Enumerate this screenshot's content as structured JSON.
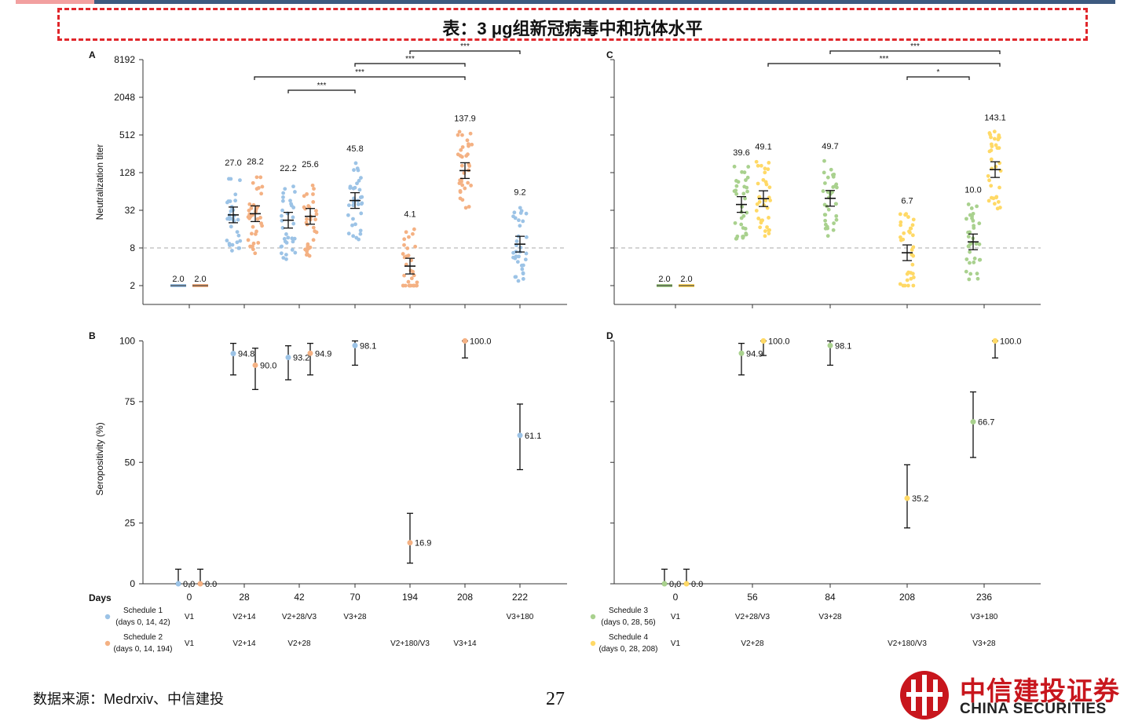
{
  "header": {
    "title": "表：3 μg组新冠病毒中和抗体水平"
  },
  "footer": {
    "source": "数据来源：Medrxiv、中信建投",
    "page": "27",
    "logo_cn": "中信建投证券",
    "logo_en": "CHINA SECURITIES"
  },
  "colors": {
    "blue": "#9cc3e6",
    "orange": "#f4b183",
    "green": "#a9d18e",
    "yellow": "#ffd966",
    "title_border": "#e0262b",
    "brand_red": "#c8161d"
  },
  "chart_data": [
    {
      "panel": "A",
      "type": "scatter",
      "ylabel": "Neutralization titer",
      "yscale": "log2",
      "ylim": [
        1,
        8192
      ],
      "yticks": [
        2,
        8,
        32,
        128,
        512,
        2048,
        8192
      ],
      "x_days": [
        0,
        28,
        42,
        70,
        194,
        208,
        222
      ],
      "threshold": 8,
      "series": [
        {
          "color": "blue",
          "groups": [
            {
              "day": 0,
              "gmt": "2.0",
              "value": 2.0
            },
            {
              "day": 28,
              "gmt": "27.0",
              "value": 27.0
            },
            {
              "day": 42,
              "gmt": "22.2",
              "value": 22.2
            },
            {
              "day": 70,
              "gmt": "45.8",
              "value": 45.8
            },
            {
              "day": 222,
              "gmt": "9.2",
              "value": 9.2
            }
          ]
        },
        {
          "color": "orange",
          "groups": [
            {
              "day": 0,
              "gmt": "2.0",
              "value": 2.0
            },
            {
              "day": 28,
              "gmt": "28.2",
              "value": 28.2
            },
            {
              "day": 42,
              "gmt": "25.6",
              "value": 25.6
            },
            {
              "day": 194,
              "gmt": "4.1",
              "value": 4.1
            },
            {
              "day": 208,
              "gmt": "137.9",
              "value": 137.9
            }
          ]
        }
      ],
      "significance": [
        "***",
        "***",
        "***",
        "***"
      ]
    },
    {
      "panel": "B",
      "type": "scatter",
      "ylabel": "Seropositivity (%)",
      "ylim": [
        0,
        100
      ],
      "yticks": [
        0,
        25,
        50,
        75,
        100
      ],
      "x_days": [
        0,
        28,
        42,
        70,
        194,
        208,
        222
      ],
      "points": [
        {
          "color": "blue",
          "day": 0,
          "value": 0.0,
          "label": "0.0",
          "ci": [
            0,
            6
          ]
        },
        {
          "color": "orange",
          "day": 0,
          "value": 0.0,
          "label": "0.0",
          "ci": [
            0,
            6
          ]
        },
        {
          "color": "blue",
          "day": 28,
          "value": 94.8,
          "label": "94.8",
          "ci": [
            86,
            99
          ]
        },
        {
          "color": "orange",
          "day": 28,
          "value": 90.0,
          "label": "90.0",
          "ci": [
            80,
            97
          ]
        },
        {
          "color": "blue",
          "day": 42,
          "value": 93.2,
          "label": "93.2",
          "ci": [
            84,
            98
          ]
        },
        {
          "color": "orange",
          "day": 42,
          "value": 94.9,
          "label": "94.9",
          "ci": [
            86,
            99
          ]
        },
        {
          "color": "blue",
          "day": 70,
          "value": 98.1,
          "label": "98.1",
          "ci": [
            90,
            100
          ]
        },
        {
          "color": "orange",
          "day": 194,
          "value": 16.9,
          "label": "16.9",
          "ci": [
            8.5,
            29
          ]
        },
        {
          "color": "orange",
          "day": 208,
          "value": 100.0,
          "label": "100.0",
          "ci": [
            93,
            100
          ]
        },
        {
          "color": "blue",
          "day": 222,
          "value": 61.1,
          "label": "61.1",
          "ci": [
            47,
            74
          ]
        }
      ]
    },
    {
      "panel": "C",
      "type": "scatter",
      "ylabel": "",
      "yscale": "log2",
      "ylim": [
        1,
        8192
      ],
      "x_days": [
        0,
        56,
        84,
        208,
        236
      ],
      "threshold": 8,
      "series": [
        {
          "color": "green",
          "groups": [
            {
              "day": 0,
              "gmt": "2.0",
              "value": 2.0
            },
            {
              "day": 56,
              "gmt": "39.6",
              "value": 39.6
            },
            {
              "day": 84,
              "gmt": "49.7",
              "value": 49.7
            },
            {
              "day": 236,
              "gmt": "10.0",
              "value": 10.0
            }
          ]
        },
        {
          "color": "yellow",
          "groups": [
            {
              "day": 0,
              "gmt": "2.0",
              "value": 2.0
            },
            {
              "day": 56,
              "gmt": "49.1",
              "value": 49.1
            },
            {
              "day": 208,
              "gmt": "6.7",
              "value": 6.7
            },
            {
              "day": 236,
              "gmt": "143.1",
              "value": 143.1
            }
          ]
        }
      ],
      "significance": [
        "***",
        "***",
        "*"
      ]
    },
    {
      "panel": "D",
      "type": "scatter",
      "ylabel": "",
      "ylim": [
        0,
        100
      ],
      "x_days": [
        0,
        56,
        84,
        208,
        236
      ],
      "points": [
        {
          "color": "green",
          "day": 0,
          "value": 0.0,
          "label": "0.0",
          "ci": [
            0,
            6
          ]
        },
        {
          "color": "yellow",
          "day": 0,
          "value": 0.0,
          "label": "0.0",
          "ci": [
            0,
            6
          ]
        },
        {
          "color": "green",
          "day": 56,
          "value": 94.9,
          "label": "94.9",
          "ci": [
            86,
            99
          ]
        },
        {
          "color": "yellow",
          "day": 56,
          "value": 100.0,
          "label": "100.0",
          "ci": [
            94,
            100
          ]
        },
        {
          "color": "green",
          "day": 84,
          "value": 98.1,
          "label": "98.1",
          "ci": [
            90,
            100
          ]
        },
        {
          "color": "yellow",
          "day": 208,
          "value": 35.2,
          "label": "35.2",
          "ci": [
            23,
            49
          ]
        },
        {
          "color": "green",
          "day": 236,
          "value": 66.7,
          "label": "66.7",
          "ci": [
            52,
            79
          ]
        },
        {
          "color": "yellow",
          "day": 236,
          "value": 100.0,
          "label": "100.0",
          "ci": [
            93,
            100
          ]
        }
      ]
    }
  ],
  "legend_left": {
    "days_label": "Days",
    "days": [
      "0",
      "28",
      "42",
      "70",
      "194",
      "208",
      "222"
    ],
    "schedules": [
      {
        "color": "blue",
        "name": "Schedule 1",
        "detail": "(days 0, 14, 42)",
        "visits": [
          "V1",
          "V2+14",
          "V2+28/V3",
          "V3+28",
          "",
          "",
          "V3+180"
        ]
      },
      {
        "color": "orange",
        "name": "Schedule 2",
        "detail": "(days 0, 14, 194)",
        "visits": [
          "V1",
          "V2+14",
          "V2+28",
          "",
          "V2+180/V3",
          "V3+14",
          ""
        ]
      }
    ]
  },
  "legend_right": {
    "days": [
      "0",
      "56",
      "84",
      "208",
      "236"
    ],
    "schedules": [
      {
        "color": "green",
        "name": "Schedule 3",
        "detail": "(days 0, 28, 56)",
        "visits": [
          "V1",
          "V2+28/V3",
          "V3+28",
          "",
          "V3+180"
        ]
      },
      {
        "color": "yellow",
        "name": "Schedule 4",
        "detail": "(days 0, 28, 208)",
        "visits": [
          "V1",
          "V2+28",
          "",
          "V2+180/V3",
          "V3+28"
        ]
      }
    ]
  }
}
